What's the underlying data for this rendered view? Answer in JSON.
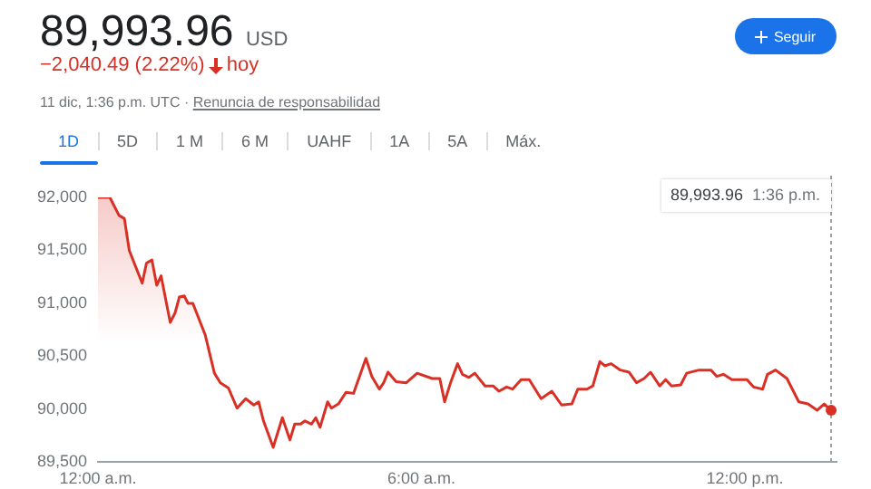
{
  "chart_data": {
    "type": "area",
    "title": "89,993.96",
    "annotations": [
      "USD",
      "−2,040.49 (2.22%)",
      "hoy",
      "11 dic, 1:36 p.m. UTC ·",
      "Renuncia de responsabilidad",
      "Seguir",
      "1D",
      "5D",
      "1 M",
      "6 M",
      "UAHF",
      "1A",
      "5A",
      "Máx.",
      "89,993.96",
      "1:36 p.m."
    ],
    "series": [
      {
        "color": "#d93025",
        "x": [
          0,
          0.22,
          0.39,
          0.49,
          0.58,
          0.82,
          0.9,
          1.0,
          1.09,
          1.17,
          1.34,
          1.43,
          1.51,
          1.6,
          1.67,
          1.76,
          1.99,
          2.16,
          2.27,
          2.42,
          2.58,
          2.74,
          2.89,
          2.98,
          3.07,
          3.25,
          3.42,
          3.56,
          3.65,
          3.76,
          3.84,
          3.96,
          4.04,
          4.12,
          4.26,
          4.33,
          4.46,
          4.6,
          4.74,
          4.97,
          5.08,
          5.22,
          5.3,
          5.38,
          5.53,
          5.72,
          5.92,
          6.2,
          6.34,
          6.43,
          6.54,
          6.67,
          6.76,
          6.88,
          6.99,
          7.18,
          7.33,
          7.44,
          7.58,
          7.69,
          7.85,
          8.0,
          8.22,
          8.42,
          8.6,
          8.79,
          8.9,
          9.07,
          9.18,
          9.31,
          9.4,
          9.52,
          9.69,
          9.85,
          9.99,
          10.13,
          10.25,
          10.42,
          10.53,
          10.64,
          10.81,
          10.92,
          11.15,
          11.37,
          11.48,
          11.6,
          11.76,
          12.04,
          12.16,
          12.33,
          12.42,
          12.57,
          12.78,
          13.0,
          13.17,
          13.34,
          13.47,
          13.6
        ],
        "values": [
          92000,
          92000,
          91830,
          91800,
          91500,
          91190,
          91380,
          91410,
          91170,
          91260,
          90820,
          90910,
          91060,
          91070,
          91000,
          91000,
          90700,
          90340,
          90250,
          90200,
          90010,
          90100,
          90040,
          90070,
          89890,
          89640,
          89920,
          89710,
          89860,
          89860,
          89890,
          89860,
          89920,
          89830,
          90070,
          90010,
          90050,
          90160,
          90150,
          90480,
          90310,
          90190,
          90250,
          90350,
          90260,
          90250,
          90340,
          90290,
          90290,
          90070,
          90250,
          90430,
          90330,
          90300,
          90340,
          90220,
          90220,
          90170,
          90210,
          90190,
          90280,
          90280,
          90100,
          90170,
          90040,
          90050,
          90190,
          90190,
          90220,
          90450,
          90410,
          90430,
          90370,
          90350,
          90250,
          90290,
          90350,
          90220,
          90280,
          90220,
          90230,
          90340,
          90370,
          90370,
          90310,
          90330,
          90280,
          90280,
          90210,
          90190,
          90330,
          90370,
          90290,
          90070,
          90050,
          89990,
          90050,
          89990
        ]
      }
    ],
    "xlim": [
      0,
      13.7
    ],
    "xticks": [
      {
        "value": 0,
        "label": "12:00 a.m."
      },
      {
        "value": 6,
        "label": "6:00 a.m."
      },
      {
        "value": 12,
        "label": "12:00 p.m."
      }
    ],
    "ylim": [
      89500,
      92000
    ],
    "yticks": [
      {
        "value": 89500,
        "label": "89,500"
      },
      {
        "value": 90000,
        "label": "90,000"
      },
      {
        "value": 90500,
        "label": "90,500"
      },
      {
        "value": 91000,
        "label": "91,000"
      },
      {
        "value": 91500,
        "label": "91,500"
      },
      {
        "value": 92000,
        "label": "92,000"
      }
    ],
    "ref_lines": [
      {
        "axis": "x",
        "value": 13.6,
        "line_style": "dotted",
        "color": "#9aa0a6"
      }
    ],
    "grid": false,
    "legend": false,
    "marker": "none",
    "line_style": "solid"
  }
}
